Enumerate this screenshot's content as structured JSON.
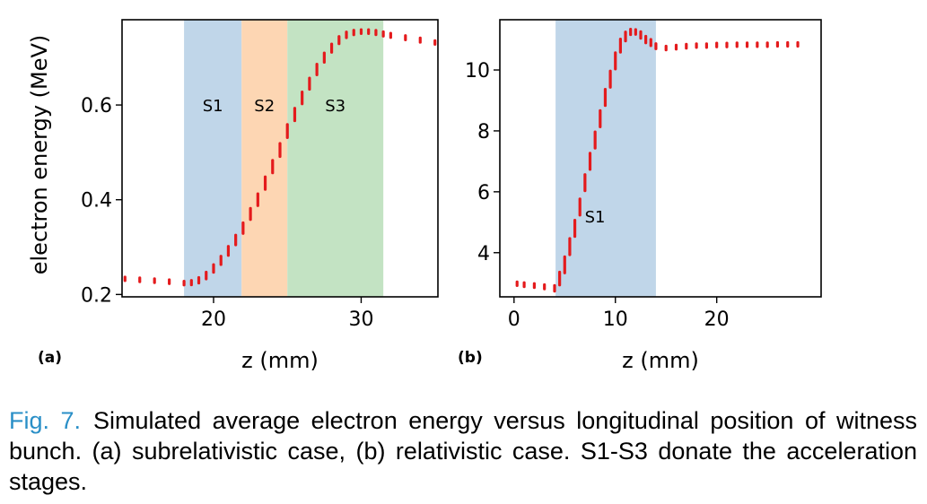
{
  "chart_data": [
    {
      "type": "scatter",
      "panel_label": "(a)",
      "xlabel": "z (mm)",
      "ylabel": "electron energy (MeV)",
      "xlim": [
        13.8,
        35.2
      ],
      "ylim": [
        0.195,
        0.78
      ],
      "xticks": [
        20,
        30
      ],
      "yticks": [
        0.2,
        0.4,
        0.6
      ],
      "ytick_labels": [
        "0.2",
        "0.4",
        "0.6"
      ],
      "grid": false,
      "series_color": "#e41a1c",
      "stages": [
        {
          "label": "S1",
          "x0": 18.0,
          "x1": 21.9,
          "color": "#c0d6e9"
        },
        {
          "label": "S2",
          "x0": 21.9,
          "x1": 25.0,
          "color": "#fdd6b3"
        },
        {
          "label": "S3",
          "x0": 25.0,
          "x1": 31.5,
          "color": "#c3e3c3"
        }
      ],
      "stage_label_y": 0.6,
      "x": [
        14,
        15,
        16,
        17,
        18,
        18.5,
        19,
        19.5,
        20,
        20.5,
        21,
        21.5,
        22,
        22.5,
        23,
        23.5,
        24,
        24.5,
        25,
        25.5,
        26,
        26.5,
        27,
        27.5,
        28,
        28.5,
        29,
        29.5,
        30,
        30.5,
        31,
        31.5,
        32,
        33,
        34,
        35
      ],
      "y": [
        0.233,
        0.231,
        0.229,
        0.227,
        0.224,
        0.225,
        0.23,
        0.24,
        0.255,
        0.272,
        0.292,
        0.315,
        0.34,
        0.37,
        0.4,
        0.435,
        0.47,
        0.505,
        0.545,
        0.58,
        0.615,
        0.645,
        0.675,
        0.7,
        0.72,
        0.737,
        0.748,
        0.753,
        0.755,
        0.755,
        0.753,
        0.75,
        0.747,
        0.742,
        0.737,
        0.732
      ]
    },
    {
      "type": "scatter",
      "panel_label": "(b)",
      "xlabel": "z (mm)",
      "ylabel": "",
      "xlim": [
        -1.4,
        30.3
      ],
      "ylim": [
        2.55,
        11.65
      ],
      "xticks": [
        0,
        10,
        20
      ],
      "yticks": [
        4,
        6,
        8,
        10
      ],
      "ytick_labels": [
        "4",
        "6",
        "8",
        "10"
      ],
      "grid": false,
      "series_color": "#e41a1c",
      "stages": [
        {
          "label": "S1",
          "x0": 4.1,
          "x1": 14.0,
          "color": "#c0d6e9"
        }
      ],
      "stage_label_y": 5.2,
      "x": [
        0.3,
        1,
        2,
        3,
        4,
        4.5,
        5,
        5.5,
        6,
        6.5,
        7,
        7.5,
        8,
        8.5,
        9,
        9.5,
        10,
        10.5,
        11,
        11.5,
        12,
        12.5,
        13,
        13.5,
        14,
        15,
        16,
        17,
        18,
        19,
        20,
        21,
        22,
        23,
        24,
        25,
        26,
        27,
        28
      ],
      "y": [
        2.98,
        2.95,
        2.92,
        2.88,
        2.83,
        3.15,
        3.6,
        4.2,
        4.8,
        5.5,
        6.3,
        7.0,
        7.7,
        8.4,
        9.1,
        9.7,
        10.3,
        10.8,
        11.1,
        11.25,
        11.25,
        11.15,
        11.0,
        10.9,
        10.78,
        10.72,
        10.75,
        10.78,
        10.8,
        10.8,
        10.82,
        10.82,
        10.83,
        10.83,
        10.83,
        10.83,
        10.84,
        10.84,
        10.84
      ]
    }
  ],
  "caption": {
    "figure_number": "Fig. 7.",
    "text": "Simulated average electron energy versus longitudinal position of witness bunch. (a) subrelativistic case, (b) relativistic case. S1-S3 donate the acceleration stages."
  }
}
